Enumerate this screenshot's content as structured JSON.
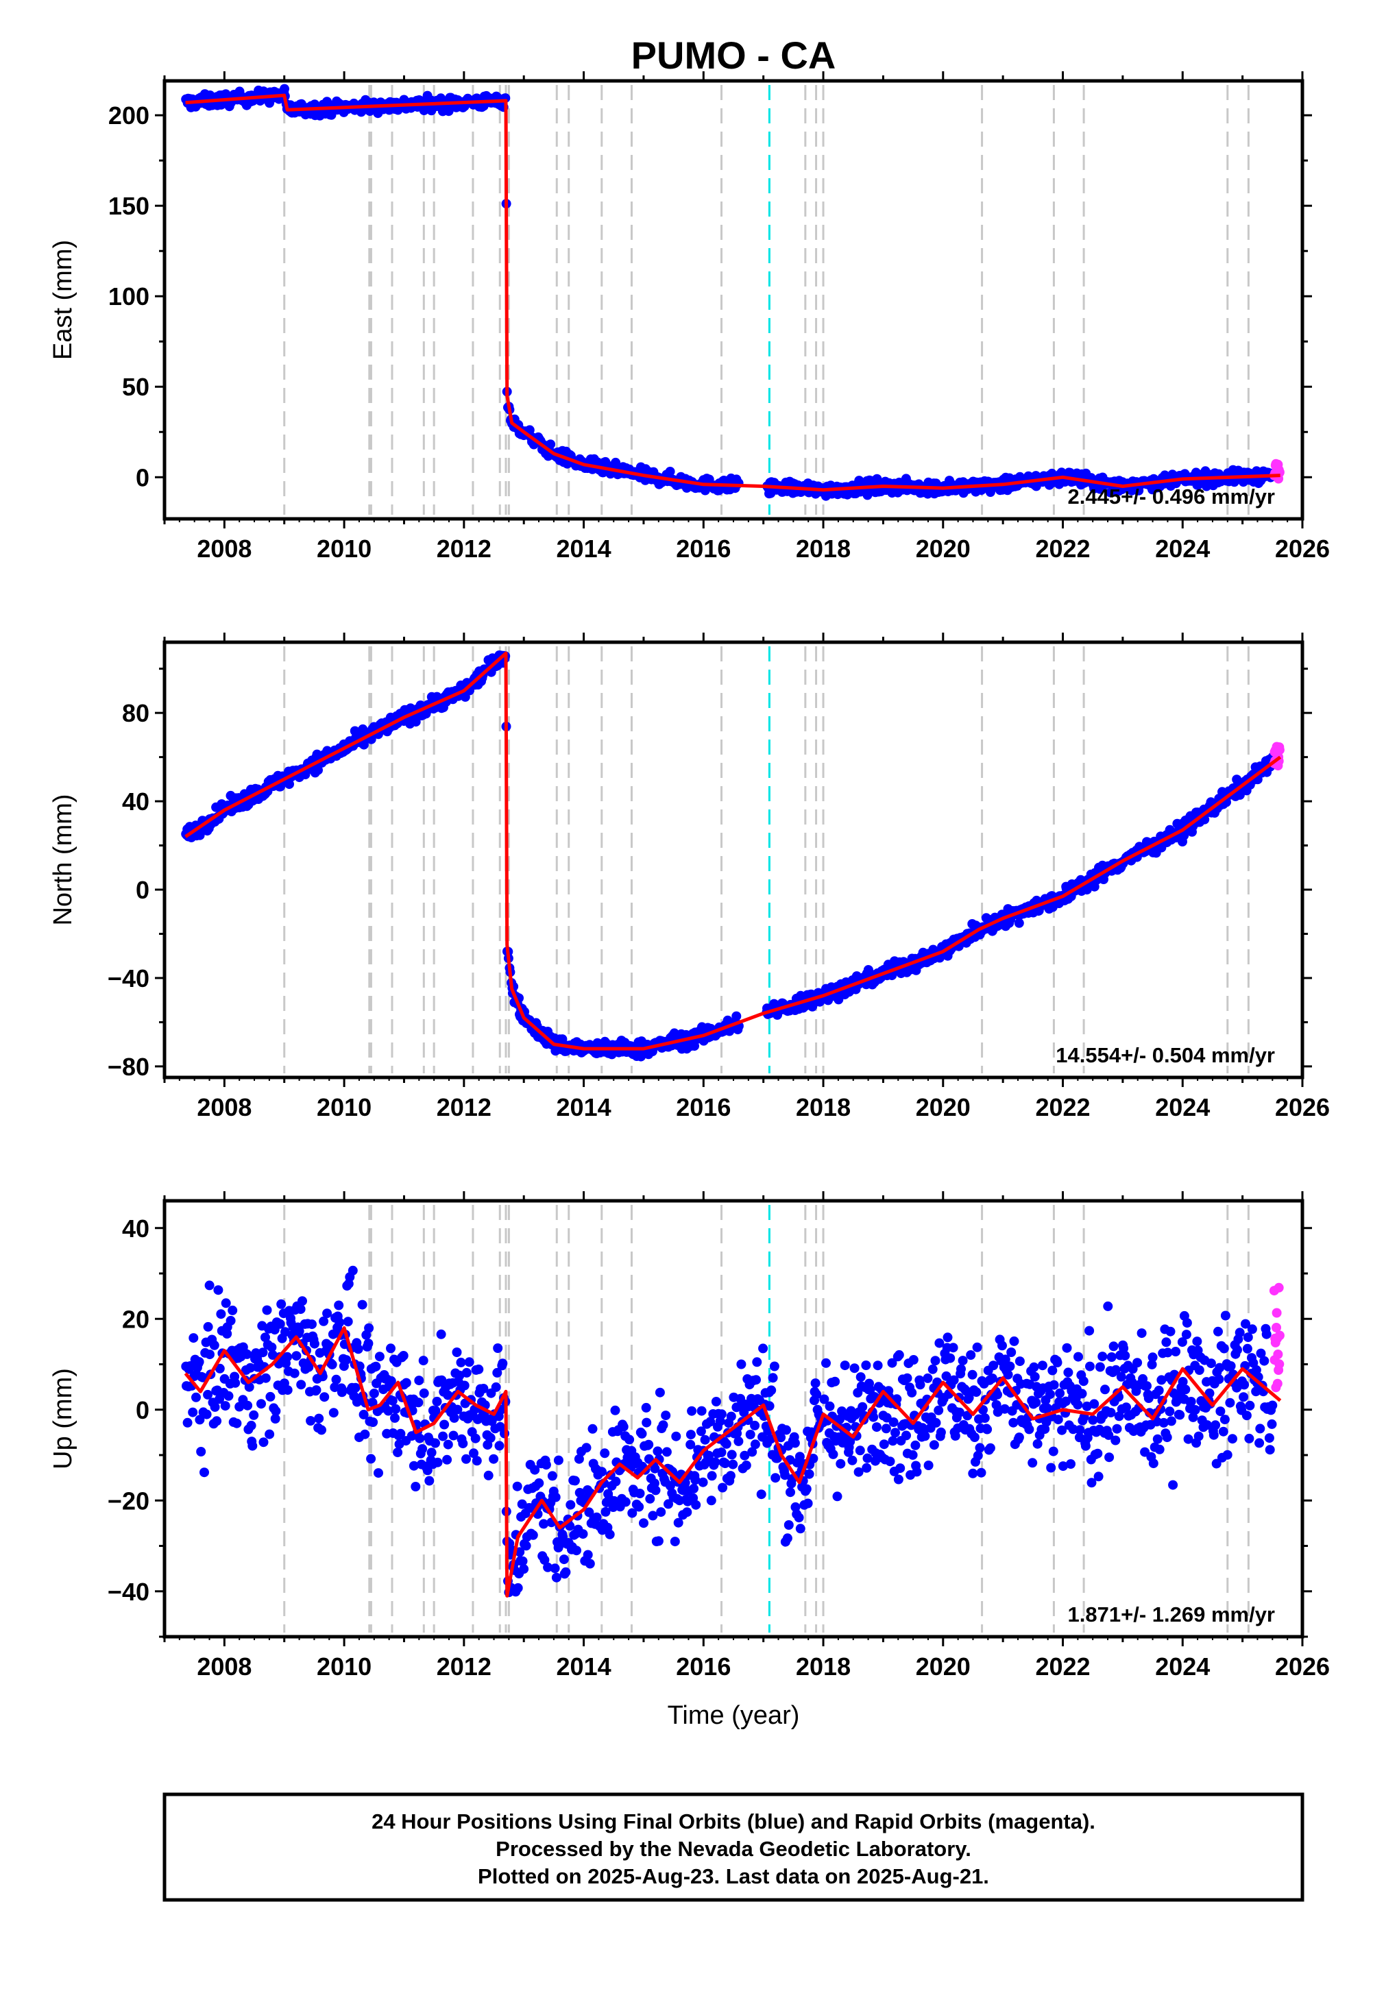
{
  "title": "PUMO - CA",
  "colors": {
    "final_points": "#0000ff",
    "rapid_points": "#ff33ff",
    "model_line": "#ff0000",
    "event_line": "#c8c8c8",
    "special_event_line": "#00e5e5",
    "frame": "#000000"
  },
  "xlabel": "Time (year)",
  "footer": {
    "line1": "24 Hour Positions Using Final Orbits (blue) and Rapid Orbits (magenta).",
    "line2": "Processed by the Nevada Geodetic Laboratory.",
    "line3": "Plotted on 2025-Aug-23. Last data on 2025-Aug-21."
  },
  "chart_data": [
    {
      "type": "scatter",
      "component": "east",
      "ylabel": "East (mm)",
      "xlim": [
        2007.0,
        2026.0
      ],
      "ylim": [
        -23,
        219
      ],
      "x_ticks": [
        2008,
        2010,
        2012,
        2014,
        2016,
        2018,
        2020,
        2022,
        2024,
        2026
      ],
      "y_ticks": [
        0,
        50,
        100,
        150,
        200
      ],
      "rate_text": "2.445+/- 0.496 mm/yr",
      "data_range": [
        2007.35,
        2025.63
      ],
      "scatter_amplitude": 2.5,
      "model": {
        "x": [
          2007.35,
          2009.0,
          2009.05,
          2012.7,
          2012.72,
          2012.8,
          2013.0,
          2013.5,
          2014.0,
          2015.0,
          2016.0,
          2017.0,
          2018.0,
          2019.0,
          2020.0,
          2021.0,
          2022.0,
          2023.0,
          2024.0,
          2025.63
        ],
        "y": [
          207,
          211,
          203,
          208,
          45,
          30,
          25,
          13,
          7,
          1,
          -4,
          -5,
          -7,
          -5,
          -6,
          -4,
          0,
          -5,
          -1,
          1
        ]
      }
    },
    {
      "type": "scatter",
      "component": "north",
      "ylabel": "North (mm)",
      "xlim": [
        2007.0,
        2026.0
      ],
      "ylim": [
        -85,
        112
      ],
      "x_ticks": [
        2008,
        2010,
        2012,
        2014,
        2016,
        2018,
        2020,
        2022,
        2024,
        2026
      ],
      "y_ticks": [
        -80,
        -40,
        0,
        40,
        80
      ],
      "rate_text": "14.554+/- 0.504 mm/yr",
      "data_range": [
        2007.35,
        2025.63
      ],
      "scatter_amplitude": 2.5,
      "model": {
        "x": [
          2007.35,
          2008.0,
          2009.0,
          2010.0,
          2011.0,
          2012.0,
          2012.7,
          2012.72,
          2012.8,
          2013.0,
          2013.5,
          2014.0,
          2015.0,
          2016.0,
          2017.0,
          2018.0,
          2019.0,
          2020.0,
          2020.6,
          2021.0,
          2022.0,
          2023.0,
          2024.0,
          2025.63
        ],
        "y": [
          24,
          36,
          50,
          64,
          78,
          90,
          107,
          -25,
          -45,
          -58,
          -70,
          -72,
          -72,
          -66,
          -56,
          -48,
          -38,
          -28,
          -18,
          -13,
          -3,
          13,
          27,
          60
        ]
      }
    },
    {
      "type": "scatter",
      "component": "up",
      "ylabel": "Up (mm)",
      "xlim": [
        2007.0,
        2026.0
      ],
      "ylim": [
        -50,
        46
      ],
      "x_ticks": [
        2008,
        2010,
        2012,
        2014,
        2016,
        2018,
        2020,
        2022,
        2024,
        2026
      ],
      "y_ticks": [
        -40,
        -20,
        0,
        20,
        40
      ],
      "rate_text": "1.871+/- 1.269 mm/yr",
      "data_range": [
        2007.35,
        2025.63
      ],
      "scatter_amplitude": 10,
      "model": {
        "x": [
          2007.35,
          2007.6,
          2008.0,
          2008.4,
          2008.8,
          2009.2,
          2009.6,
          2010.0,
          2010.4,
          2010.6,
          2010.9,
          2011.2,
          2011.5,
          2011.9,
          2012.2,
          2012.5,
          2012.7,
          2012.72,
          2012.9,
          2013.3,
          2013.6,
          2014.0,
          2014.3,
          2014.6,
          2014.9,
          2015.2,
          2015.6,
          2016.0,
          2016.4,
          2017.0,
          2017.3,
          2017.6,
          2018.0,
          2018.5,
          2019.0,
          2019.5,
          2020.0,
          2020.5,
          2021.0,
          2021.5,
          2022.0,
          2022.5,
          2023.0,
          2023.5,
          2024.0,
          2024.5,
          2025.0,
          2025.63
        ],
        "y": [
          8,
          4,
          13,
          6,
          10,
          16,
          8,
          18,
          0,
          1,
          6,
          -5,
          -3,
          4,
          1,
          -1,
          4,
          -41,
          -28,
          -20,
          -26,
          -22,
          -16,
          -12,
          -15,
          -11,
          -16,
          -9,
          -5,
          1,
          -10,
          -16,
          -1,
          -6,
          4,
          -3,
          6,
          -1,
          7,
          -2,
          0,
          -1,
          5,
          -2,
          9,
          1,
          9,
          2
        ]
      }
    }
  ],
  "event_lines": [
    2009.0,
    2010.42,
    2010.45,
    2010.8,
    2011.33,
    2011.5,
    2012.15,
    2012.6,
    2012.7,
    2012.75,
    2013.55,
    2013.75,
    2014.3,
    2014.8,
    2016.3,
    2017.7,
    2017.88,
    2018.0,
    2020.65,
    2021.85,
    2022.35,
    2024.75,
    2025.1
  ],
  "special_event_lines": [
    2017.1
  ]
}
